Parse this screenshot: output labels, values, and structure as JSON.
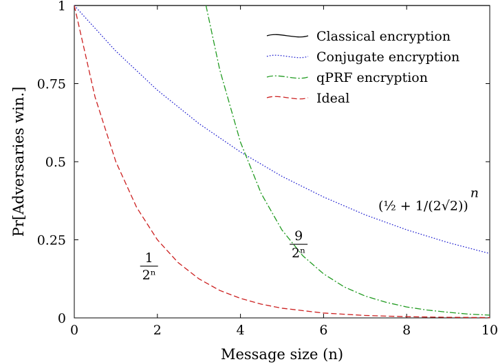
{
  "chart_data": {
    "type": "line",
    "title": "",
    "xlabel": "Message size (n)",
    "ylabel": "Pr[Adversaries win.]",
    "xlim": [
      0,
      10
    ],
    "ylim": [
      0,
      1
    ],
    "x_ticks": [
      "0",
      "2",
      "4",
      "6",
      "8",
      "10"
    ],
    "y_ticks": [
      "0",
      "0.25",
      "0.5",
      "0.75",
      "1"
    ],
    "grid": false,
    "legend_position": "top-right",
    "series": [
      {
        "name": "Classical encryption",
        "color": "#000000",
        "style": "solid",
        "x": [
          0,
          1,
          2,
          3,
          4,
          5,
          6,
          7,
          8,
          9,
          10
        ],
        "y": [
          1,
          1,
          1,
          1,
          1,
          1,
          1,
          1,
          1,
          1,
          1
        ]
      },
      {
        "name": "Conjugate encryption",
        "color": "#1f1fd0",
        "style": "dotted",
        "x": [
          0,
          1,
          2,
          3,
          4,
          5,
          6,
          7,
          8,
          9,
          10
        ],
        "y": [
          1.0,
          0.854,
          0.729,
          0.622,
          0.531,
          0.453,
          0.387,
          0.33,
          0.282,
          0.241,
          0.206
        ]
      },
      {
        "name": "qPRF encryption",
        "color": "#1f9a1f",
        "style": "dashdot",
        "x": [
          3.17,
          3.5,
          4,
          4.5,
          5,
          5.5,
          6,
          6.5,
          7,
          7.5,
          8,
          8.5,
          9,
          9.5,
          10
        ],
        "y": [
          1.0,
          0.795,
          0.5625,
          0.398,
          0.281,
          0.199,
          0.141,
          0.099,
          0.07,
          0.05,
          0.035,
          0.025,
          0.018,
          0.012,
          0.0088
        ]
      },
      {
        "name": "Ideal",
        "color": "#cc1f1f",
        "style": "dashed",
        "x": [
          0,
          0.5,
          1,
          1.5,
          2,
          2.5,
          3,
          3.5,
          4,
          4.5,
          5,
          6,
          7,
          8,
          9,
          10
        ],
        "y": [
          1.0,
          0.707,
          0.5,
          0.354,
          0.25,
          0.177,
          0.125,
          0.088,
          0.0625,
          0.044,
          0.031,
          0.0156,
          0.0078,
          0.0039,
          0.00195,
          0.00098
        ]
      }
    ],
    "annotations": [
      {
        "id": "ideal-formula",
        "numerator": "1",
        "denominator": "2ⁿ",
        "x": 1.8,
        "y": 0.17
      },
      {
        "id": "qprf-formula",
        "numerator": "9",
        "denominator": "2ⁿ",
        "x": 5.4,
        "y": 0.24
      },
      {
        "id": "conjugate-formula",
        "text_main": "(½ + 1/(2√2))",
        "text_exp": "n",
        "x": 8.4,
        "y": 0.36
      }
    ]
  }
}
